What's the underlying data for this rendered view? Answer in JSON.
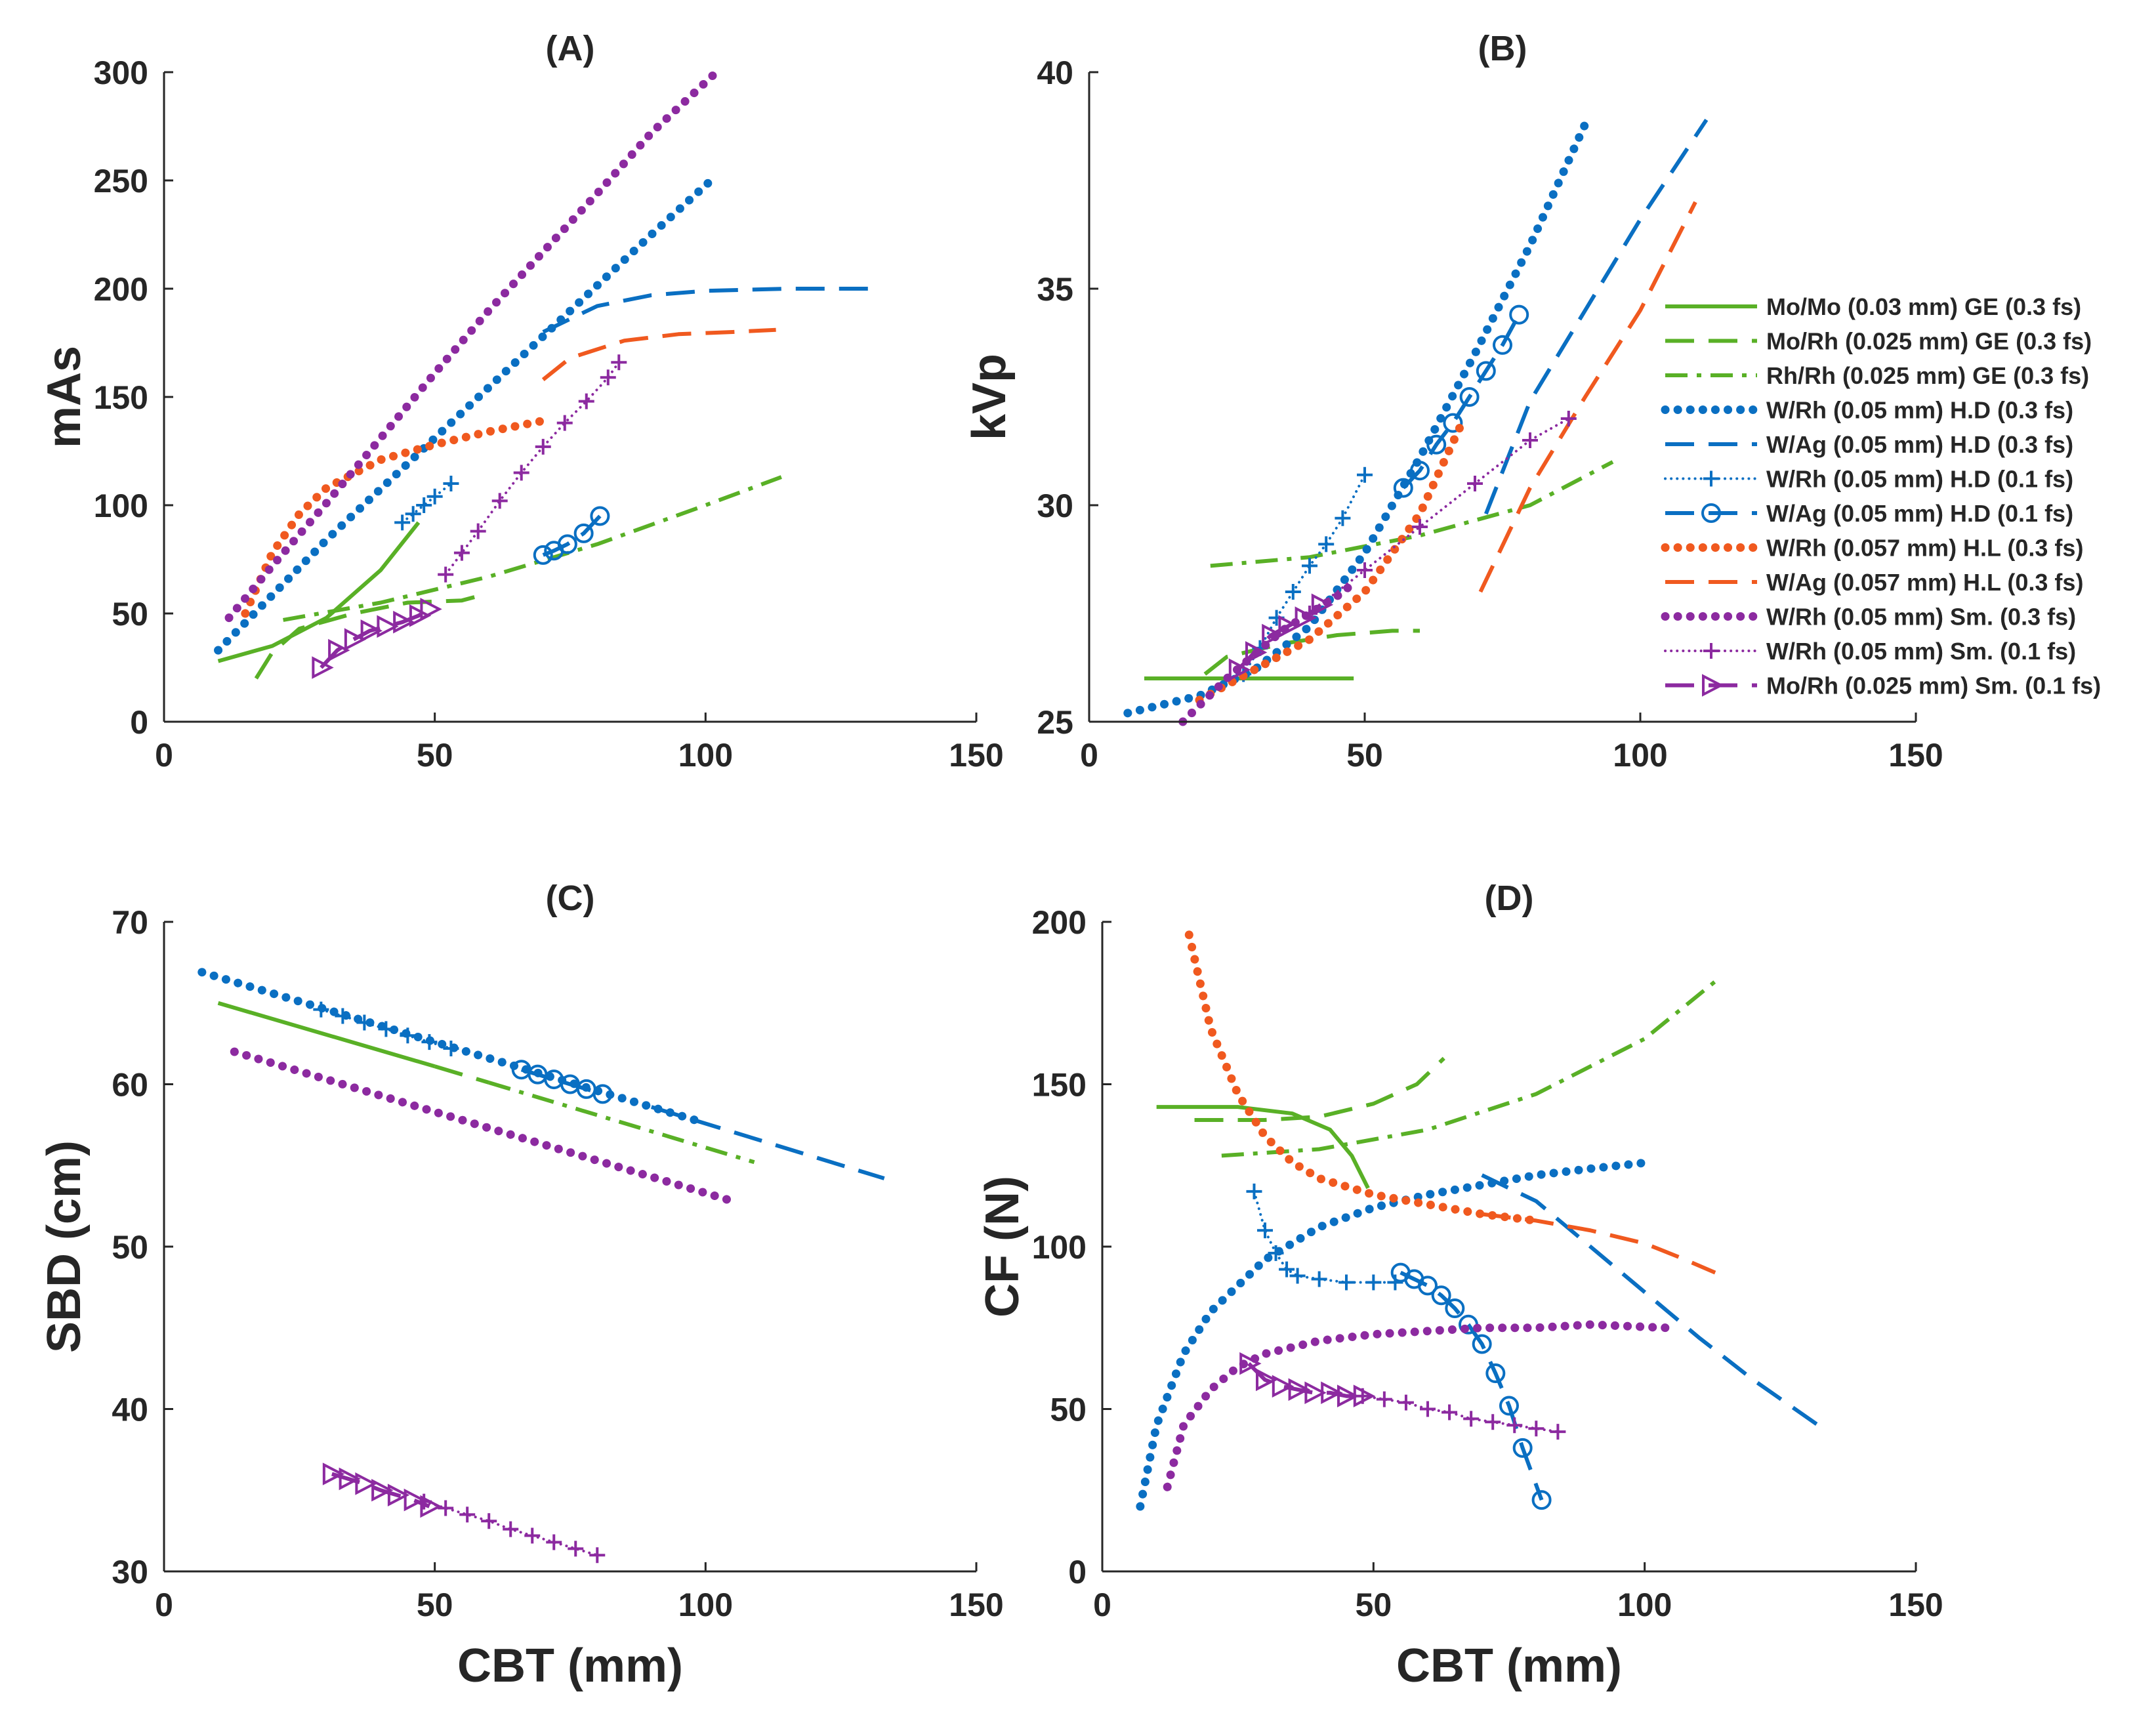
{
  "colors": {
    "green": "#59B026",
    "blue": "#0A6FC2",
    "orange": "#F0591F",
    "purple": "#8C2AA0",
    "axis": "#262626"
  },
  "legend_panel": "B",
  "legend_position": "right, overlapping panel (B)",
  "series": [
    {
      "key": "momo",
      "label": "Mo/Mo (0.03 mm) GE (0.3 fs)",
      "color": "green",
      "style": "solid",
      "marker": "none"
    },
    {
      "key": "morh_ge",
      "label": "Mo/Rh (0.025 mm) GE (0.3 fs)",
      "color": "green",
      "style": "dash",
      "marker": "none"
    },
    {
      "key": "rhrh",
      "label": "Rh/Rh (0.025 mm) GE (0.3 fs)",
      "color": "green",
      "style": "dashdot",
      "marker": "none"
    },
    {
      "key": "wrh_hd3",
      "label": "W/Rh (0.05 mm) H.D (0.3 fs)",
      "color": "blue",
      "style": "dot",
      "marker": "none"
    },
    {
      "key": "wag_hd3",
      "label": "W/Ag (0.05 mm) H.D (0.3 fs)",
      "color": "blue",
      "style": "dash",
      "marker": "none"
    },
    {
      "key": "wrh_hd1",
      "label": "W/Rh (0.05 mm) H.D (0.1 fs)",
      "color": "blue",
      "style": "finedot",
      "marker": "plus"
    },
    {
      "key": "wag_hd1",
      "label": "W/Ag (0.05 mm) H.D (0.1 fs)",
      "color": "blue",
      "style": "dash",
      "marker": "circle"
    },
    {
      "key": "wrh_hl3",
      "label": "W/Rh (0.057 mm) H.L (0.3 fs)",
      "color": "orange",
      "style": "dot",
      "marker": "none"
    },
    {
      "key": "wag_hl3",
      "label": "W/Ag (0.057 mm) H.L (0.3 fs)",
      "color": "orange",
      "style": "dash",
      "marker": "none"
    },
    {
      "key": "wrh_sm3",
      "label": "W/Rh (0.05 mm) Sm. (0.3 fs)",
      "color": "purple",
      "style": "dot",
      "marker": "none"
    },
    {
      "key": "wrh_sm1",
      "label": "W/Rh (0.05 mm) Sm. (0.1 fs)",
      "color": "purple",
      "style": "finedot",
      "marker": "plus"
    },
    {
      "key": "morh_sm1",
      "label": "Mo/Rh (0.025 mm) Sm. (0.1 fs)",
      "color": "purple",
      "style": "dash",
      "marker": "triangle"
    }
  ],
  "chart_data": [
    {
      "id": "A",
      "type": "line",
      "title": "(A)",
      "xlabel": "",
      "ylabel": "mAs",
      "xlim": [
        0,
        150
      ],
      "ylim": [
        0,
        300
      ],
      "xticks": [
        0,
        50,
        100,
        150
      ],
      "yticks": [
        0,
        50,
        100,
        150,
        200,
        250,
        300
      ],
      "lines": [
        {
          "series": "momo",
          "x": [
            10,
            20,
            30,
            40,
            47
          ],
          "y": [
            28,
            35,
            48,
            70,
            92
          ]
        },
        {
          "series": "morh_ge",
          "x": [
            17,
            20,
            25,
            35,
            45,
            55,
            58
          ],
          "y": [
            20,
            32,
            43,
            50,
            55,
            56,
            58
          ]
        },
        {
          "series": "rhrh",
          "x": [
            22,
            40,
            60,
            80,
            100,
            114
          ],
          "y": [
            47,
            55,
            67,
            82,
            100,
            113
          ]
        },
        {
          "series": "wrh_hd3",
          "x": [
            10,
            30,
            50,
            70,
            90,
            101
          ],
          "y": [
            33,
            84,
            131,
            178,
            225,
            250
          ]
        },
        {
          "series": "wag_hd3",
          "x": [
            70,
            80,
            90,
            100,
            115,
            132
          ],
          "y": [
            180,
            192,
            197,
            199,
            200,
            200
          ]
        },
        {
          "series": "wrh_hd1",
          "x": [
            44,
            46,
            48,
            50,
            53
          ],
          "y": [
            92,
            96,
            100,
            104,
            110
          ]
        },
        {
          "series": "wag_hd1",
          "x": [
            70,
            72,
            74.5,
            77.5,
            80.5
          ],
          "y": [
            77,
            79,
            82,
            87,
            95
          ]
        },
        {
          "series": "wrh_hl3",
          "x": [
            15,
            20,
            25,
            30,
            40,
            50,
            60,
            70
          ],
          "y": [
            50,
            78,
            96,
            108,
            121,
            128,
            134,
            139
          ]
        },
        {
          "series": "wag_hl3",
          "x": [
            70,
            75,
            85,
            95,
            105,
            113
          ],
          "y": [
            158,
            168,
            176,
            179,
            180,
            181
          ]
        },
        {
          "series": "wrh_sm3",
          "x": [
            12,
            20,
            30,
            40,
            50,
            60,
            70,
            80,
            90,
            102
          ],
          "y": [
            48,
            72,
            101,
            131,
            161,
            190,
            217,
            244,
            272,
            300
          ]
        },
        {
          "series": "wrh_sm1",
          "x": [
            52,
            55,
            58,
            62,
            66,
            70,
            74,
            78,
            82,
            84
          ],
          "y": [
            68,
            78,
            88,
            102,
            115,
            127,
            138,
            148,
            159,
            166
          ]
        },
        {
          "series": "morh_sm1",
          "x": [
            29,
            32,
            35,
            38,
            41,
            44,
            47,
            49
          ],
          "y": [
            25,
            33,
            38,
            42,
            44,
            46,
            49,
            52
          ]
        }
      ]
    },
    {
      "id": "B",
      "type": "line",
      "title": "(B)",
      "xlabel": "",
      "ylabel": "kVp",
      "xlim": [
        0,
        150
      ],
      "ylim": [
        25,
        40
      ],
      "xticks": [
        0,
        50,
        100,
        150
      ],
      "yticks": [
        25,
        30,
        35,
        40
      ],
      "lines": [
        {
          "series": "momo",
          "x": [
            10,
            48
          ],
          "y": [
            26,
            26
          ]
        },
        {
          "series": "morh_ge",
          "x": [
            21,
            25,
            35,
            45,
            55,
            60
          ],
          "y": [
            26.1,
            26.5,
            26.8,
            27,
            27.1,
            27.1
          ]
        },
        {
          "series": "rhrh",
          "x": [
            22,
            40,
            60,
            80,
            95
          ],
          "y": [
            28.6,
            28.8,
            29.3,
            30,
            31
          ]
        },
        {
          "series": "wrh_hd3",
          "x": [
            7,
            20,
            30,
            40,
            50,
            60,
            70,
            80,
            90
          ],
          "y": [
            25.2,
            25.6,
            26.2,
            27.2,
            28.9,
            31.1,
            33.5,
            36,
            38.8
          ]
        },
        {
          "series": "wag_hd3",
          "x": [
            72,
            80,
            90,
            100,
            112
          ],
          "y": [
            29.8,
            32.4,
            34.5,
            36.6,
            38.9
          ]
        },
        {
          "series": "wrh_hd1",
          "x": [
            28,
            31,
            34,
            37,
            40,
            43,
            46,
            50
          ],
          "y": [
            26.1,
            26.7,
            27.4,
            28,
            28.6,
            29.1,
            29.7,
            30.7
          ]
        },
        {
          "series": "wag_hd1",
          "x": [
            57,
            60,
            63,
            66,
            69,
            72,
            75,
            78
          ],
          "y": [
            30.4,
            30.8,
            31.4,
            31.9,
            32.5,
            33.1,
            33.7,
            34.4
          ]
        },
        {
          "series": "wrh_hl3",
          "x": [
            20,
            30,
            40,
            50,
            60,
            68
          ],
          "y": [
            25.5,
            26.2,
            26.9,
            28,
            29.8,
            32
          ]
        },
        {
          "series": "wag_hl3",
          "x": [
            71,
            80,
            90,
            100,
            110
          ],
          "y": [
            28,
            30.4,
            32.5,
            34.5,
            37
          ]
        },
        {
          "series": "wrh_sm3",
          "x": [
            17,
            25,
            35,
            45,
            47
          ],
          "y": [
            25,
            26,
            27.1,
            27.9,
            28.1
          ]
        },
        {
          "series": "wrh_sm1",
          "x": [
            40,
            50,
            60,
            70,
            80,
            87
          ],
          "y": [
            27.5,
            28.5,
            29.5,
            30.5,
            31.5,
            32
          ]
        },
        {
          "series": "morh_sm1",
          "x": [
            27,
            30,
            33,
            36,
            39,
            42
          ],
          "y": [
            26.2,
            26.6,
            27,
            27.2,
            27.4,
            27.7
          ]
        }
      ]
    },
    {
      "id": "C",
      "type": "line",
      "title": "(C)",
      "xlabel": "CBT (mm)",
      "ylabel": "SBD (cm)",
      "xlim": [
        0,
        150
      ],
      "ylim": [
        30,
        70
      ],
      "xticks": [
        0,
        50,
        100,
        150
      ],
      "yticks": [
        30,
        40,
        50,
        60,
        70
      ],
      "lines": [
        {
          "series": "momo",
          "x": [
            10,
            50
          ],
          "y": [
            65,
            61.1
          ]
        },
        {
          "series": "morh_ge",
          "x": [
            50,
            60
          ],
          "y": [
            61.1,
            60.1
          ]
        },
        {
          "series": "rhrh",
          "x": [
            60,
            109
          ],
          "y": [
            60.1,
            55.2
          ]
        },
        {
          "series": "wrh_hd3",
          "x": [
            7,
            100
          ],
          "y": [
            66.9,
            57.6
          ]
        },
        {
          "series": "wag_hd3",
          "x": [
            90,
            133
          ],
          "y": [
            58.6,
            54.2
          ]
        },
        {
          "series": "wrh_hd1",
          "x": [
            29,
            33,
            37,
            41,
            45,
            49,
            53
          ],
          "y": [
            64.6,
            64.2,
            63.8,
            63.4,
            63,
            62.6,
            62.2
          ]
        },
        {
          "series": "wag_hd1",
          "x": [
            66,
            69,
            72,
            75,
            78,
            81
          ],
          "y": [
            60.9,
            60.6,
            60.3,
            60,
            59.7,
            59.4
          ]
        },
        {
          "series": "wrh_sm3",
          "x": [
            13,
            104
          ],
          "y": [
            62,
            52.9
          ]
        },
        {
          "series": "wrh_sm1",
          "x": [
            48,
            52,
            56,
            60,
            64,
            68,
            72,
            76,
            80
          ],
          "y": [
            34.3,
            33.9,
            33.5,
            33.1,
            32.6,
            32.2,
            31.8,
            31.4,
            31
          ]
        },
        {
          "series": "morh_sm1",
          "x": [
            31,
            34,
            37,
            40,
            43,
            46,
            49
          ],
          "y": [
            36,
            35.7,
            35.4,
            35,
            34.7,
            34.4,
            34
          ]
        }
      ]
    },
    {
      "id": "D",
      "type": "line",
      "title": "(D)",
      "xlabel": "CBT (mm)",
      "ylabel": "CF (N)",
      "xlim": [
        0,
        150
      ],
      "ylim": [
        0,
        200
      ],
      "xticks": [
        0,
        50,
        100,
        150
      ],
      "yticks": [
        0,
        50,
        100,
        150,
        200
      ],
      "lines": [
        {
          "series": "momo",
          "x": [
            10,
            25,
            35,
            42,
            46,
            49
          ],
          "y": [
            143,
            143,
            141,
            136,
            128,
            118
          ]
        },
        {
          "series": "morh_ge",
          "x": [
            17,
            30,
            40,
            50,
            58,
            63
          ],
          "y": [
            139,
            139,
            140,
            144,
            150,
            158
          ]
        },
        {
          "series": "rhrh",
          "x": [
            22,
            40,
            60,
            80,
            100,
            114
          ],
          "y": [
            128,
            130,
            136,
            147,
            164,
            183
          ]
        },
        {
          "series": "wrh_hd3",
          "x": [
            7,
            10,
            15,
            20,
            30,
            40,
            50,
            60,
            70,
            80,
            90,
            101
          ],
          "y": [
            20,
            45,
            67,
            80,
            96,
            106,
            112,
            116,
            119,
            122,
            124,
            126
          ]
        },
        {
          "series": "wag_hd3",
          "x": [
            70,
            80,
            90,
            100,
            110,
            120,
            132
          ],
          "y": [
            122,
            114,
            100,
            86,
            72,
            59,
            45
          ]
        },
        {
          "series": "wrh_hd1",
          "x": [
            28,
            30,
            32,
            34,
            36,
            40,
            45,
            50,
            54
          ],
          "y": [
            117,
            105,
            98,
            93,
            91,
            90,
            89,
            89,
            89
          ]
        },
        {
          "series": "wag_hd1",
          "x": [
            55,
            57.5,
            60,
            62.5,
            65,
            67.5,
            70,
            72.5,
            75,
            77.5,
            81
          ],
          "y": [
            92,
            90,
            88,
            85,
            81,
            76,
            70,
            61,
            51,
            38,
            22
          ]
        },
        {
          "series": "wrh_hl3",
          "x": [
            16,
            20,
            25,
            30,
            35,
            40,
            50,
            60,
            70,
            80
          ],
          "y": [
            196,
            167,
            147,
            134,
            126,
            121,
            116,
            113,
            110,
            108
          ]
        },
        {
          "series": "wag_hl3",
          "x": [
            70,
            80,
            90,
            100,
            106,
            113
          ],
          "y": [
            110,
            108,
            105,
            101,
            97,
            92
          ]
        },
        {
          "series": "wrh_sm3",
          "x": [
            12,
            15,
            20,
            25,
            30,
            40,
            50,
            60,
            70,
            80,
            90,
            104
          ],
          "y": [
            26,
            45,
            56,
            63,
            67,
            71,
            73,
            74,
            75,
            75,
            76,
            75
          ]
        },
        {
          "series": "wrh_sm1",
          "x": [
            48,
            52,
            56,
            60,
            64,
            68,
            72,
            76,
            80,
            84
          ],
          "y": [
            54,
            53,
            52,
            50,
            49,
            47,
            46,
            45,
            44,
            43
          ]
        },
        {
          "series": "morh_sm1",
          "x": [
            27,
            30,
            33,
            36,
            39,
            42,
            45,
            48
          ],
          "y": [
            64,
            59,
            57,
            56,
            55,
            55,
            54,
            54
          ]
        }
      ]
    }
  ]
}
